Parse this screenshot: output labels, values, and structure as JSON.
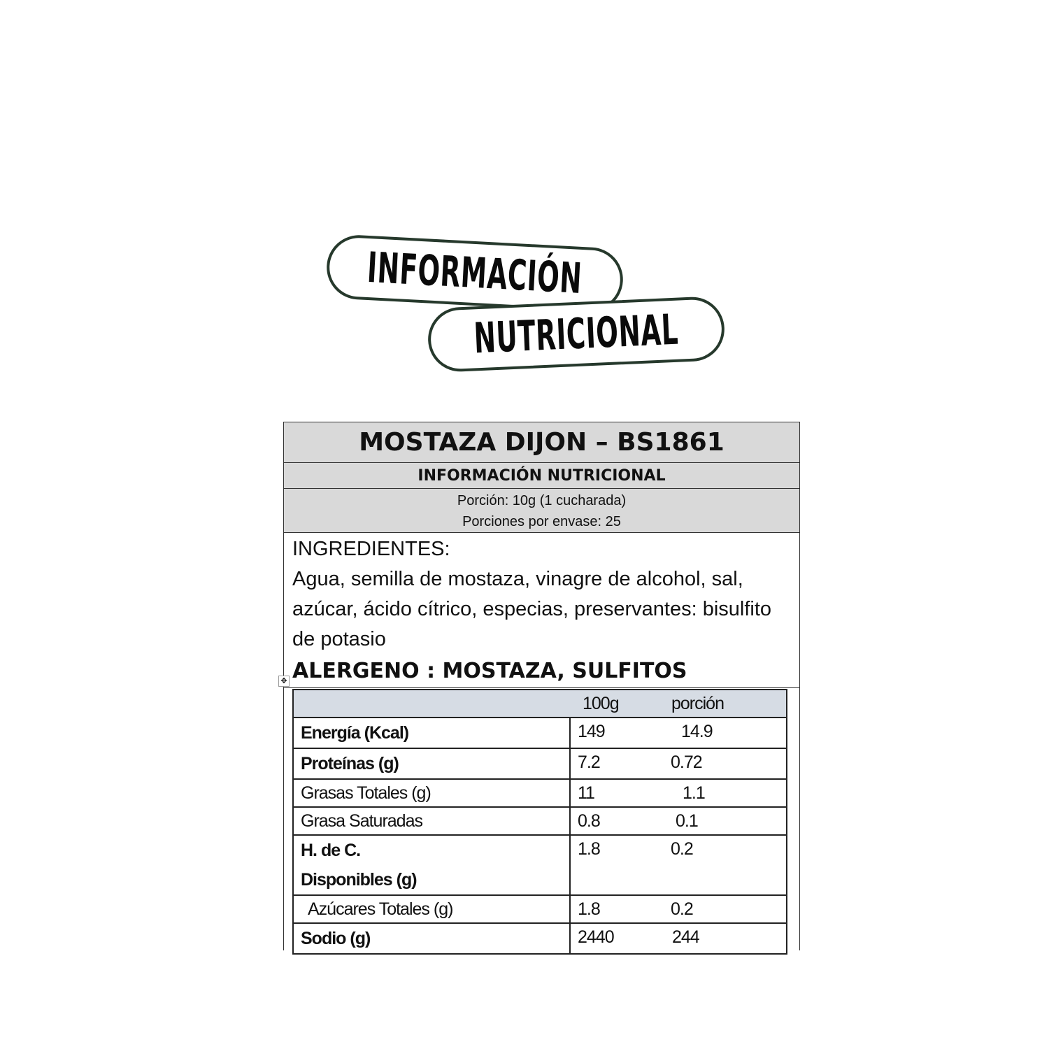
{
  "header": {
    "line1": "INFORMACIÓN",
    "line2": "NUTRICIONAL"
  },
  "label": {
    "title": "MOSTAZA DIJON – BS1861",
    "subtitle": "INFORMACIÓN NUTRICIONAL",
    "portion": "Porción: 10g (1 cucharada)",
    "servings": "Porciones por envase: 25",
    "ingredients_title": "INGREDIENTES:",
    "ingredients": "Agua, semilla de mostaza, vinagre de alcohol, sal, azúcar, ácido cítrico, especias, preservantes: bisulfito de potasio",
    "allergen": "ALERGENO : MOSTAZA, SULFITOS"
  },
  "table": {
    "columns": [
      "100g",
      "porción"
    ],
    "rows": [
      {
        "name": "Energía (Kcal)",
        "per100": "149",
        "portion": "14.9",
        "bold": true
      },
      {
        "name": "Proteínas (g)",
        "per100": "7.2",
        "portion": "0.72",
        "bold": true
      },
      {
        "name": "Grasas Totales (g)",
        "per100": "11",
        "portion": "1.1",
        "bold": false
      },
      {
        "name": "Grasa Saturadas",
        "per100": "0.8",
        "portion": "0.1",
        "bold": false
      },
      {
        "name": "H. de C. Disponibles (g)",
        "per100": "1.8",
        "portion": "0.2",
        "bold": true
      },
      {
        "name": "Azúcares Totales (g)",
        "per100": "1.8",
        "portion": "0.2",
        "bold": false
      },
      {
        "name": "Sodio (g)",
        "per100": "2440",
        "portion": "244",
        "bold": true
      }
    ]
  }
}
